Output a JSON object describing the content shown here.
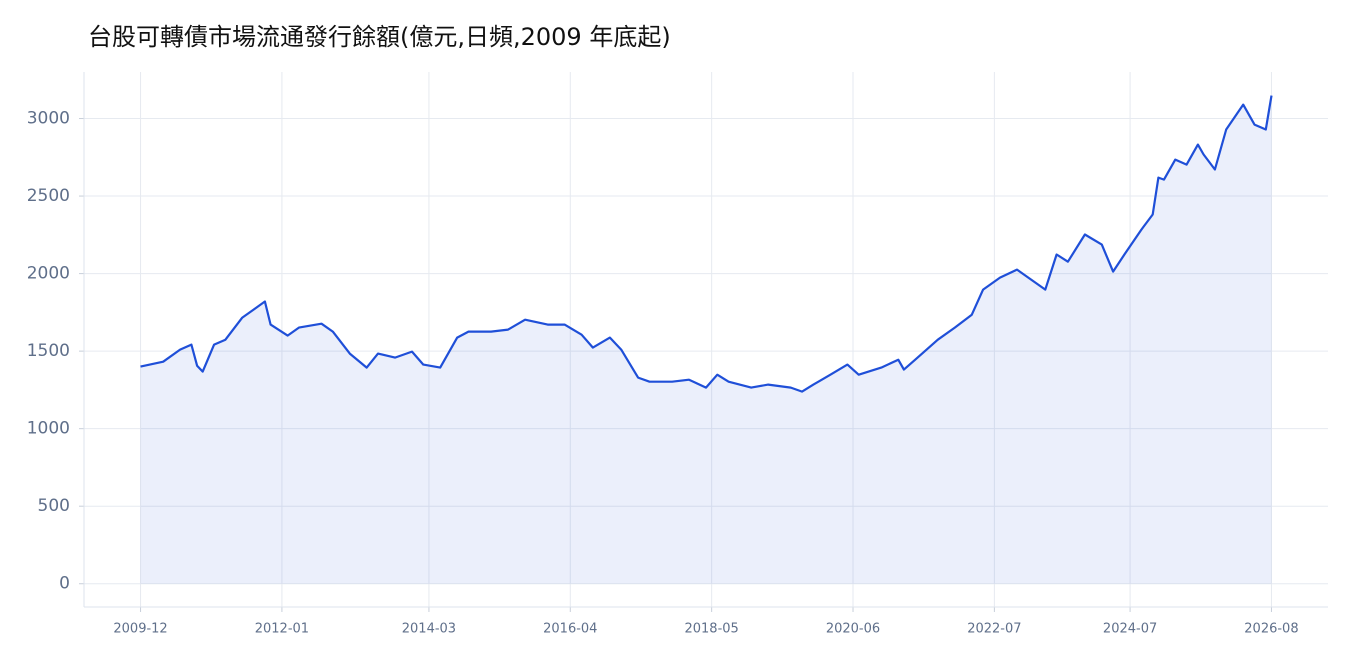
{
  "chart_data": {
    "type": "line",
    "title": "台股可轉債市場流通發行餘額(億元,日頻,2009 年底起)",
    "x": [
      "2009-12",
      "2010-04",
      "2010-07",
      "2010-09",
      "2010-10",
      "2010-11",
      "2011-01",
      "2011-03",
      "2011-06",
      "2011-08",
      "2011-10",
      "2011-11",
      "2012-02",
      "2012-04",
      "2012-08",
      "2012-10",
      "2013-01",
      "2013-04",
      "2013-06",
      "2013-09",
      "2013-12",
      "2014-02",
      "2014-05",
      "2014-08",
      "2014-10",
      "2015-02",
      "2015-05",
      "2015-08",
      "2015-12",
      "2016-03",
      "2016-06",
      "2016-08",
      "2016-11",
      "2017-01",
      "2017-04",
      "2017-06",
      "2017-10",
      "2018-01",
      "2018-04",
      "2018-06",
      "2018-08",
      "2018-12",
      "2019-03",
      "2019-07",
      "2019-09",
      "2019-11",
      "2020-02",
      "2020-05",
      "2020-07",
      "2020-11",
      "2021-02",
      "2021-03",
      "2021-05",
      "2021-09",
      "2021-12",
      "2022-03",
      "2022-05",
      "2022-08",
      "2022-11",
      "2023-01",
      "2023-04",
      "2023-06",
      "2023-08",
      "2023-11",
      "2024-02",
      "2024-04",
      "2024-06",
      "2024-09",
      "2024-11",
      "2024-12",
      "2025-01",
      "2025-03",
      "2025-05",
      "2025-07",
      "2025-08",
      "2025-10",
      "2025-12",
      "2026-03",
      "2026-05",
      "2026-07",
      "2026-08"
    ],
    "series": [
      {
        "name": "流通發行餘額",
        "color": "#1f4fd8",
        "values": [
          1400,
          1432,
          1510,
          1542,
          1406,
          1368,
          1542,
          1574,
          1716,
          1768,
          1820,
          1671,
          1600,
          1652,
          1677,
          1626,
          1484,
          1394,
          1484,
          1458,
          1497,
          1413,
          1394,
          1587,
          1626,
          1626,
          1639,
          1703,
          1671,
          1671,
          1606,
          1523,
          1587,
          1510,
          1329,
          1303,
          1303,
          1316,
          1265,
          1348,
          1303,
          1265,
          1284,
          1265,
          1239,
          1284,
          1348,
          1413,
          1348,
          1394,
          1445,
          1381,
          1445,
          1574,
          1652,
          1735,
          1897,
          1974,
          2026,
          1974,
          1897,
          2123,
          2077,
          2252,
          2187,
          2013,
          2123,
          2284,
          2381,
          2619,
          2606,
          2735,
          2703,
          2832,
          2768,
          2671,
          2929,
          3090,
          2961,
          2929,
          3148
        ]
      }
    ],
    "xlim": [
      "2009-02",
      "2027-06"
    ],
    "xticks": [
      "2009-12",
      "2012-01",
      "2014-03",
      "2016-04",
      "2018-05",
      "2020-06",
      "2022-07",
      "2024-07",
      "2026-08"
    ],
    "ylim": [
      -150,
      3300
    ],
    "yticks": [
      0,
      500,
      1000,
      1500,
      2000,
      2500,
      3000
    ],
    "grid": true
  }
}
